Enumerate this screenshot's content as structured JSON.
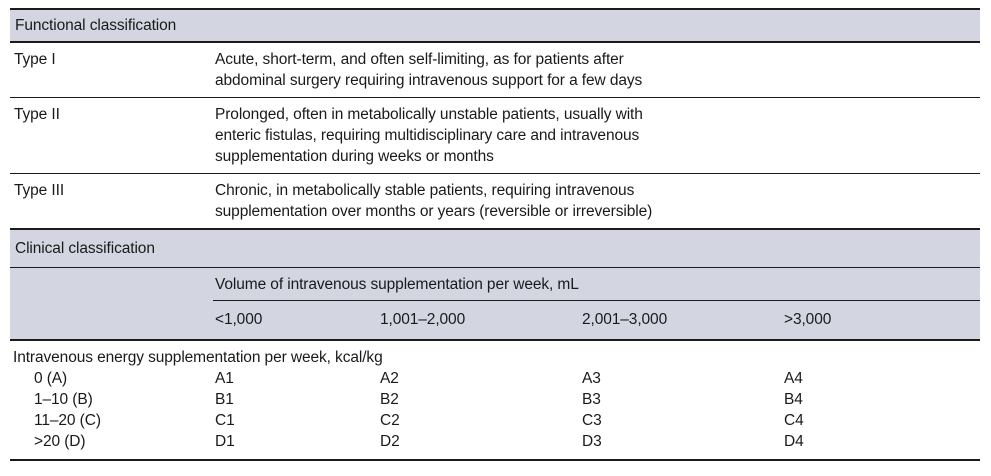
{
  "table": {
    "functional": {
      "header": "Functional classification",
      "rows": [
        {
          "label": "Type I",
          "description": "Acute, short-term, and often self-limiting, as for patients after\nabdominal surgery requiring intravenous support for a few days"
        },
        {
          "label": "Type II",
          "description": "Prolonged, often in metabolically unstable patients, usually with\nenteric fistulas, requiring multidisciplinary care and intravenous\nsupplementation during weeks or months"
        },
        {
          "label": "Type III",
          "description": "Chronic, in metabolically stable patients, requiring intravenous\nsupplementation over months or years (reversible or irreversible)"
        }
      ]
    },
    "clinical": {
      "header": "Clinical classification",
      "volume_header": "Volume of intravenous supplementation per week, mL",
      "volume_columns": [
        "<1,000",
        "1,001–2,000",
        "2,001–3,000",
        ">3,000"
      ],
      "energy_header": "Intravenous energy supplementation per week, kcal/kg",
      "energy_rows": [
        {
          "label": "0 (A)",
          "cells": [
            "A1",
            "A2",
            "A3",
            "A4"
          ]
        },
        {
          "label": "1–10 (B)",
          "cells": [
            "B1",
            "B2",
            "B3",
            "B4"
          ]
        },
        {
          "label": "11–20 (C)",
          "cells": [
            "C1",
            "C2",
            "C3",
            "C4"
          ]
        },
        {
          "label": ">20 (D)",
          "cells": [
            "D1",
            "D2",
            "D3",
            "D4"
          ]
        }
      ]
    },
    "colors": {
      "band_background": "#d3d6e0",
      "rule": "#1b1b1b",
      "text": "#1a1a1a"
    }
  }
}
